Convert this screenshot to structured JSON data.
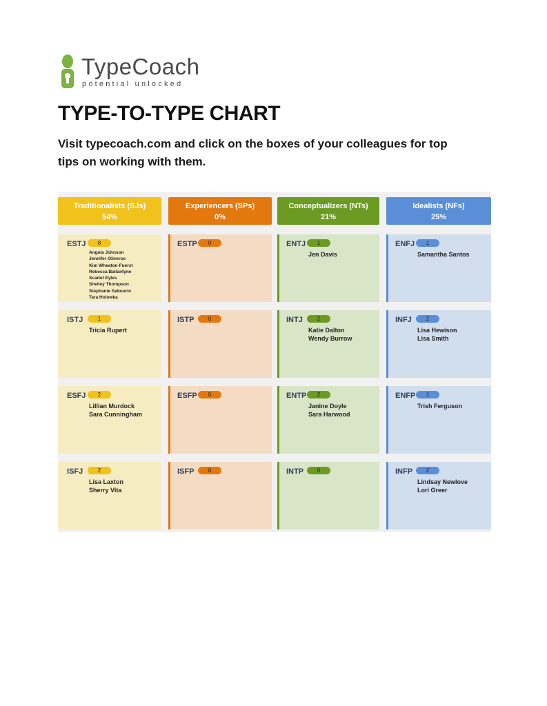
{
  "header": {
    "brand": "TypeCoach",
    "tagline": "potential unlocked",
    "title": "TYPE-TO-TYPE CHART",
    "intro": "Visit typecoach.com and click on the boxes of your colleagues for top tips on working with them."
  },
  "chart": {
    "columns": [
      {
        "name": "Traditionalists (SJs)",
        "percent": "54%",
        "types": [
          {
            "type": "ESTJ",
            "count": 8,
            "names": [
              "Angela Johnson",
              "Jennifer Oliveros",
              "Kim Wheaton-Fuerst",
              "Rebecca Ballantyne",
              "Scarlet Eyles",
              "Shelley Thompson",
              "Stephanie Sabourin",
              "Tara Holowka"
            ]
          },
          {
            "type": "ISTJ",
            "count": 1,
            "names": [
              "Tricia Rupert"
            ]
          },
          {
            "type": "ESFJ",
            "count": 2,
            "names": [
              "Lillian Murdock",
              "Sara Cunningham"
            ]
          },
          {
            "type": "ISFJ",
            "count": 2,
            "names": [
              "Lisa Laxton",
              "Sherry Vita"
            ]
          }
        ]
      },
      {
        "name": "Experiencers (SPs)",
        "percent": "0%",
        "types": [
          {
            "type": "ESTP",
            "count": 0,
            "names": []
          },
          {
            "type": "ISTP",
            "count": 0,
            "names": []
          },
          {
            "type": "ESFP",
            "count": 0,
            "names": []
          },
          {
            "type": "ISFP",
            "count": 0,
            "names": []
          }
        ]
      },
      {
        "name": "Conceptualizers (NTs)",
        "percent": "21%",
        "types": [
          {
            "type": "ENTJ",
            "count": 1,
            "names": [
              "Jen Davis"
            ]
          },
          {
            "type": "INTJ",
            "count": 2,
            "names": [
              "Katie Dalton",
              "Wendy Burrow"
            ]
          },
          {
            "type": "ENTP",
            "count": 2,
            "names": [
              "Janine Doyle",
              "Sara Harwood"
            ]
          },
          {
            "type": "INTP",
            "count": 0,
            "names": []
          }
        ]
      },
      {
        "name": "Idealists (NFs)",
        "percent": "25%",
        "types": [
          {
            "type": "ENFJ",
            "count": 1,
            "names": [
              "Samantha Santos"
            ]
          },
          {
            "type": "INFJ",
            "count": 2,
            "names": [
              "Lisa Hewison",
              "Lisa Smith"
            ]
          },
          {
            "type": "ENFP",
            "count": 1,
            "names": [
              "Trish Ferguson"
            ]
          },
          {
            "type": "INFP",
            "count": 2,
            "names": [
              "Lindsay Newlove",
              "Lori Greer"
            ]
          }
        ]
      }
    ]
  }
}
